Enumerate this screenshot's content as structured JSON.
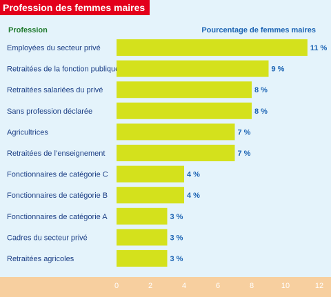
{
  "chart_data": {
    "type": "bar",
    "orientation": "horizontal",
    "title": "Profession des femmes maires",
    "category_header": "Profession",
    "value_header": "Pourcentage de femmes maires",
    "categories": [
      "Employées du secteur privé",
      "Retraitées de la fonction publique",
      "Retraitées salariées du privé",
      "Sans profession déclarée",
      "Agricultrices",
      "Retraitées de l’enseignement",
      "Fonctionnaires de catégorie C",
      "Fonctionnaires de catégorie B",
      "Fonctionnaires de catégorie A",
      "Cadres du secteur privé",
      "Retraitées agricoles"
    ],
    "values": [
      11.3,
      9,
      8,
      8,
      7,
      7,
      4,
      4,
      3,
      3,
      3
    ],
    "value_labels": [
      "11 %",
      "9 %",
      "8 %",
      "8 %",
      "7 %",
      "7 %",
      "4 %",
      "4 %",
      "3 %",
      "3 %",
      "3 %"
    ],
    "xlim": [
      0,
      12
    ],
    "xticks": [
      "0",
      "2",
      "4",
      "6",
      "8",
      "10",
      "12"
    ],
    "grid": false,
    "colors": {
      "bar": "#d4e11c",
      "background": "#e4f3fb",
      "title_banner": "#e3001b",
      "axis_band": "#f7cf9f",
      "category_text": "#1c3f86",
      "value_text": "#1c64b4",
      "header_text": "#1f7a2e"
    }
  }
}
